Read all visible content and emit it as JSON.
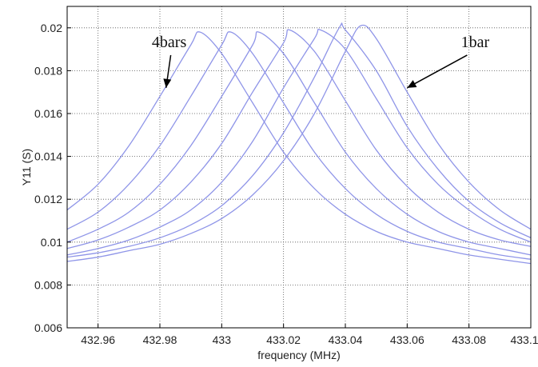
{
  "chart_data": {
    "type": "line",
    "title": "",
    "xlabel": "frequency (MHz)",
    "ylabel": "Y11 (S)",
    "xlim": [
      432.95,
      433.1
    ],
    "ylim": [
      0.006,
      0.021
    ],
    "grid": true,
    "x_ticks": [
      432.96,
      432.98,
      433,
      433.02,
      433.04,
      433.06,
      433.08,
      433.1
    ],
    "x_tick_labels": [
      "432.96",
      "432.98",
      "433",
      "433.02",
      "433.04",
      "433.06",
      "433.08",
      "433.1"
    ],
    "y_ticks": [
      0.006,
      0.008,
      0.01,
      0.012,
      0.014,
      0.016,
      0.018,
      0.02
    ],
    "y_tick_labels": [
      "0.006",
      "0.008",
      "0.01",
      "0.012",
      "0.014",
      "0.016",
      "0.018",
      "0.02"
    ],
    "line_color": "#8f95e8",
    "series": [
      {
        "x": [
          432.95,
          432.96,
          432.97,
          432.98,
          432.99,
          432.993,
          433.0,
          433.01,
          433.02,
          433.03,
          433.04,
          433.05,
          433.06,
          433.07,
          433.08,
          433.09,
          433.1
        ],
        "y": [
          0.0115,
          0.0127,
          0.0145,
          0.0168,
          0.0192,
          0.0198,
          0.0188,
          0.0165,
          0.0142,
          0.0125,
          0.0113,
          0.0105,
          0.01,
          0.0097,
          0.0094,
          0.0092,
          0.009
        ]
      },
      {
        "x": [
          432.95,
          432.96,
          432.97,
          432.98,
          432.99,
          433.0,
          433.003,
          433.01,
          433.02,
          433.03,
          433.04,
          433.05,
          433.06,
          433.07,
          433.08,
          433.09,
          433.1
        ],
        "y": [
          0.0106,
          0.0114,
          0.0127,
          0.0145,
          0.0168,
          0.0192,
          0.0198,
          0.0188,
          0.0165,
          0.0142,
          0.0125,
          0.0113,
          0.0105,
          0.01,
          0.0097,
          0.0094,
          0.0092
        ]
      },
      {
        "x": [
          432.95,
          432.96,
          432.97,
          432.98,
          432.99,
          433.0,
          433.01,
          433.012,
          433.02,
          433.03,
          433.04,
          433.05,
          433.06,
          433.07,
          433.08,
          433.09,
          433.1
        ],
        "y": [
          0.01,
          0.0106,
          0.0114,
          0.0127,
          0.0145,
          0.0168,
          0.0192,
          0.0198,
          0.0188,
          0.0165,
          0.0142,
          0.0125,
          0.0113,
          0.0105,
          0.01,
          0.0097,
          0.0094
        ]
      },
      {
        "x": [
          432.95,
          432.96,
          432.97,
          432.98,
          432.99,
          433.0,
          433.01,
          433.02,
          433.022,
          433.03,
          433.04,
          433.05,
          433.06,
          433.07,
          433.08,
          433.09,
          433.1
        ],
        "y": [
          0.0097,
          0.0101,
          0.0107,
          0.0115,
          0.0128,
          0.0146,
          0.017,
          0.0193,
          0.0199,
          0.0189,
          0.0166,
          0.0143,
          0.0126,
          0.0114,
          0.0106,
          0.0101,
          0.0098
        ]
      },
      {
        "x": [
          432.95,
          432.96,
          432.97,
          432.98,
          432.99,
          433.0,
          433.01,
          433.02,
          433.03,
          433.032,
          433.04,
          433.05,
          433.06,
          433.07,
          433.08,
          433.09,
          433.1
        ],
        "y": [
          0.0094,
          0.0097,
          0.0101,
          0.0107,
          0.0115,
          0.0128,
          0.0147,
          0.0172,
          0.0195,
          0.0199,
          0.019,
          0.0167,
          0.0144,
          0.0127,
          0.0115,
          0.0106,
          0.01
        ]
      },
      {
        "x": [
          432.95,
          432.96,
          432.97,
          432.98,
          432.99,
          433.0,
          433.01,
          433.02,
          433.03,
          433.038,
          433.04,
          433.05,
          433.06,
          433.07,
          433.08,
          433.09,
          433.1
        ],
        "y": [
          0.0093,
          0.0095,
          0.0098,
          0.0102,
          0.0108,
          0.0117,
          0.0131,
          0.0151,
          0.0177,
          0.02,
          0.0199,
          0.018,
          0.0154,
          0.0134,
          0.0119,
          0.0109,
          0.0102
        ]
      },
      {
        "x": [
          432.95,
          432.96,
          432.97,
          432.98,
          432.99,
          433.0,
          433.01,
          433.02,
          433.03,
          433.04,
          433.045,
          433.05,
          433.06,
          433.07,
          433.08,
          433.09,
          433.1
        ],
        "y": [
          0.0091,
          0.0093,
          0.0096,
          0.0099,
          0.0104,
          0.0111,
          0.0122,
          0.0138,
          0.016,
          0.0189,
          0.0201,
          0.0195,
          0.017,
          0.0146,
          0.0128,
          0.0115,
          0.0106
        ]
      }
    ],
    "annotations": [
      {
        "text": "4bars",
        "x": 432.983,
        "y": 0.0191,
        "arrow_to": [
          432.982,
          0.0172
        ]
      },
      {
        "text": "1bar",
        "x": 433.082,
        "y": 0.0191,
        "arrow_to": [
          433.06,
          0.0172
        ]
      }
    ]
  }
}
